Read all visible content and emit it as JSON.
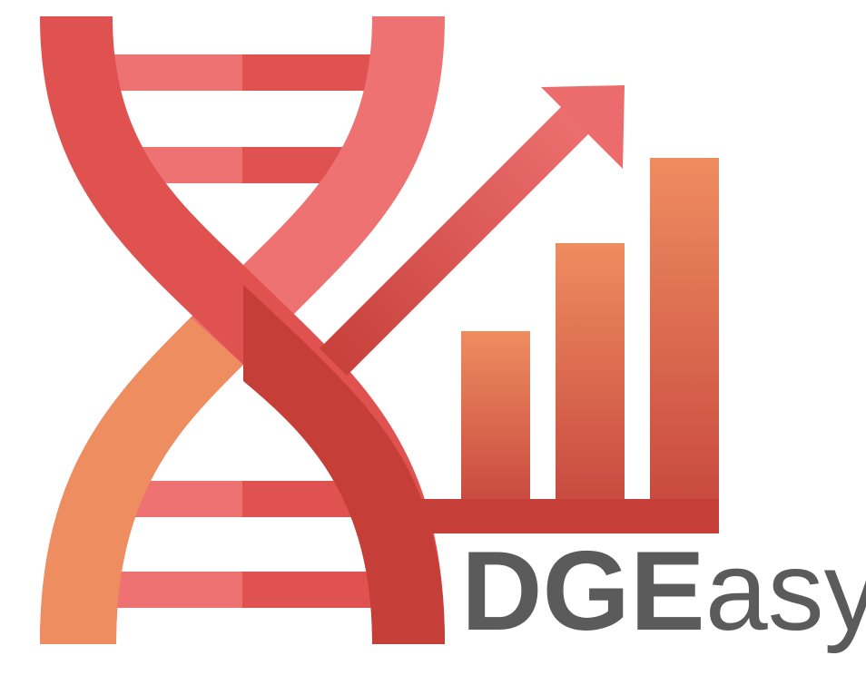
{
  "logo": {
    "name_bold": "DGE",
    "name_light": "asy",
    "colors": {
      "coral_dark": "#e0524f",
      "coral_light": "#ee7272",
      "orange": "#ee8d60",
      "red_dark": "#c63e38",
      "text_gray": "#5b5b5b"
    },
    "bar_chart_values": [
      1,
      1.5,
      2
    ]
  }
}
